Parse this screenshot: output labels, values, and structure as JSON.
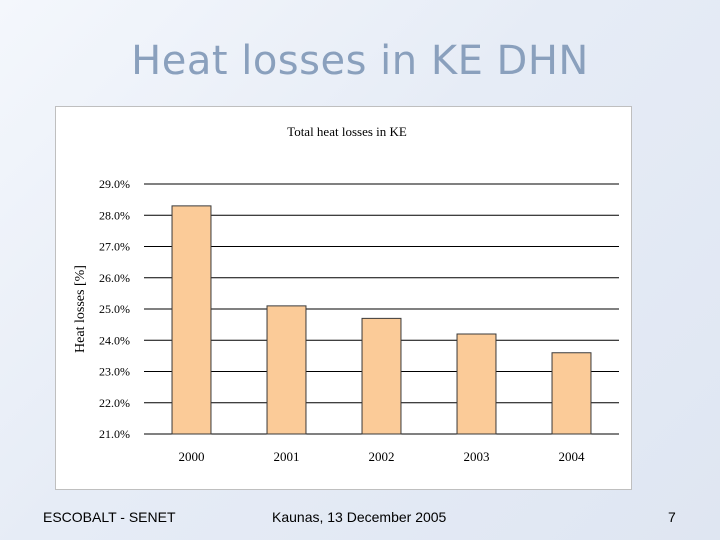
{
  "slide": {
    "title": "Heat losses in KE DHN"
  },
  "footer": {
    "left": "ESCOBALT - SENET",
    "center": "Kaunas, 13 December 2005",
    "page_number": "7"
  },
  "colors": {
    "bar_fill": "#fbcb98",
    "bar_stroke": "#3a3a3a",
    "gridline": "#000000"
  },
  "chart_data": {
    "type": "bar",
    "title": "Total heat losses in KE",
    "xlabel": "",
    "ylabel": "Heat losses [%]",
    "categories": [
      "2000",
      "2001",
      "2002",
      "2003",
      "2004"
    ],
    "values": [
      28.3,
      25.1,
      24.7,
      24.2,
      23.6
    ],
    "ylim": [
      21.0,
      29.0
    ],
    "yticks": [
      21.0,
      22.0,
      23.0,
      24.0,
      25.0,
      26.0,
      27.0,
      28.0,
      29.0
    ],
    "ytick_labels": [
      "21.0%",
      "22.0%",
      "23.0%",
      "24.0%",
      "25.0%",
      "26.0%",
      "27.0%",
      "28.0%",
      "29.0%"
    ],
    "grid": true,
    "legend": "none"
  }
}
